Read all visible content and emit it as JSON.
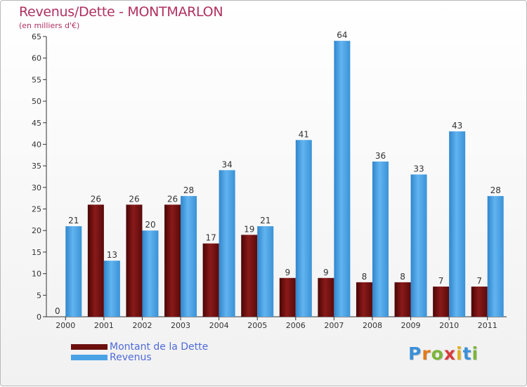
{
  "title": "Revenus/Dette - MONTMARLON",
  "subtitle": "(en milliers d'€)",
  "colors": {
    "debt": "#6b0f0f",
    "revenue": "#4aa3e6",
    "title": "#b03060",
    "legend_text": "#4f6ad8"
  },
  "legend": [
    {
      "label": "Montant de la Dette",
      "color": "#6b0f0f"
    },
    {
      "label": "Revenus",
      "color": "#4aa3e6"
    }
  ],
  "logo": {
    "text": "Proxiti"
  },
  "chart_data": {
    "type": "bar",
    "title": "Revenus/Dette - MONTMARLON",
    "subtitle": "(en milliers d'€)",
    "xlabel": "",
    "ylabel": "",
    "categories": [
      "2000",
      "2001",
      "2002",
      "2003",
      "2004",
      "2005",
      "2006",
      "2007",
      "2008",
      "2009",
      "2010",
      "2011"
    ],
    "series": [
      {
        "name": "Montant de la Dette",
        "values": [
          0,
          26,
          26,
          26,
          17,
          19,
          9,
          9,
          8,
          8,
          7,
          7
        ]
      },
      {
        "name": "Revenus",
        "values": [
          21,
          13,
          20,
          28,
          34,
          21,
          41,
          64,
          36,
          33,
          43,
          28
        ]
      }
    ],
    "ylim": [
      0,
      65
    ],
    "yticks": [
      0,
      5,
      10,
      15,
      20,
      25,
      30,
      35,
      40,
      45,
      50,
      55,
      60,
      65
    ],
    "grid": false,
    "legend_position": "bottom-left"
  }
}
